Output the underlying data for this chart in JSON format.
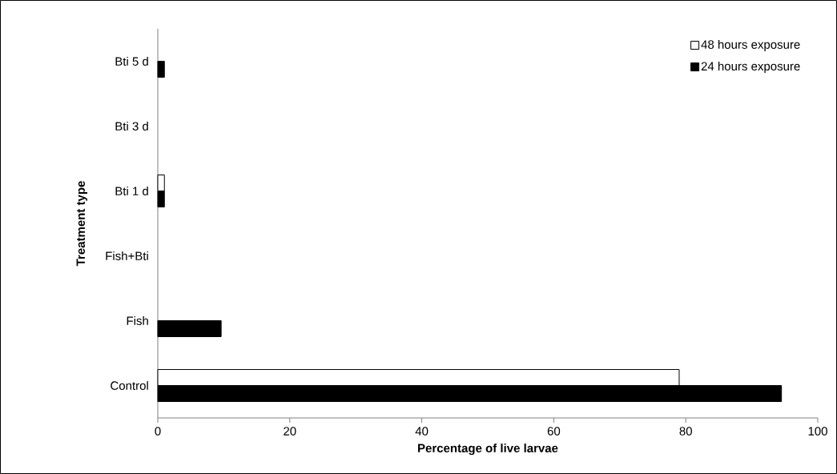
{
  "chart_data": {
    "type": "bar",
    "orientation": "horizontal",
    "xlabel": "Percentage of live larvae",
    "ylabel": "Treatment type",
    "categories": [
      "Bti 5 d",
      "Bti 3 d",
      "Bti 1 d",
      "Fish+Bti",
      "Fish",
      "Control"
    ],
    "series": [
      {
        "name": "48 hours exposure",
        "color": "#ffffff",
        "values": [
          0,
          0,
          1,
          0,
          0,
          79
        ]
      },
      {
        "name": "24 hours exposure",
        "color": "#000000",
        "values": [
          1,
          0,
          1,
          0,
          9.6,
          94.5
        ]
      }
    ],
    "xlim": [
      0,
      100
    ],
    "xticks": [
      0,
      20,
      40,
      60,
      80,
      100
    ],
    "legend": "top right",
    "grid": false
  }
}
